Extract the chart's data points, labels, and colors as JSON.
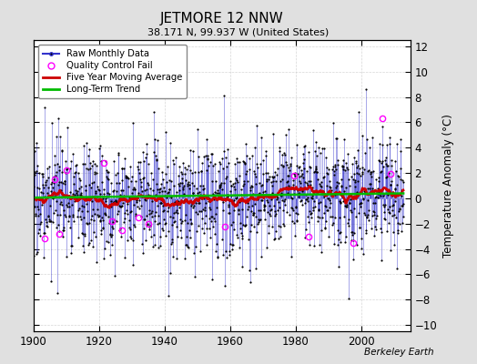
{
  "title": "JETMORE 12 NNW",
  "subtitle": "38.171 N, 99.937 W (United States)",
  "ylabel": "Temperature Anomaly (°C)",
  "watermark": "Berkeley Earth",
  "xlim": [
    1900,
    2015
  ],
  "ylim": [
    -10.5,
    12.5
  ],
  "yticks": [
    -10,
    -8,
    -6,
    -4,
    -2,
    0,
    2,
    4,
    6,
    8,
    10,
    12
  ],
  "xticks": [
    1900,
    1920,
    1940,
    1960,
    1980,
    2000
  ],
  "bg_color": "#e0e0e0",
  "plot_bg_color": "#ffffff",
  "raw_line_color": "#3333cc",
  "raw_dot_color": "#000000",
  "moving_avg_color": "#cc0000",
  "trend_color": "#00bb00",
  "qc_fail_color": "#ff00ff",
  "seed": 17,
  "n_years": 113,
  "start_year": 1900
}
